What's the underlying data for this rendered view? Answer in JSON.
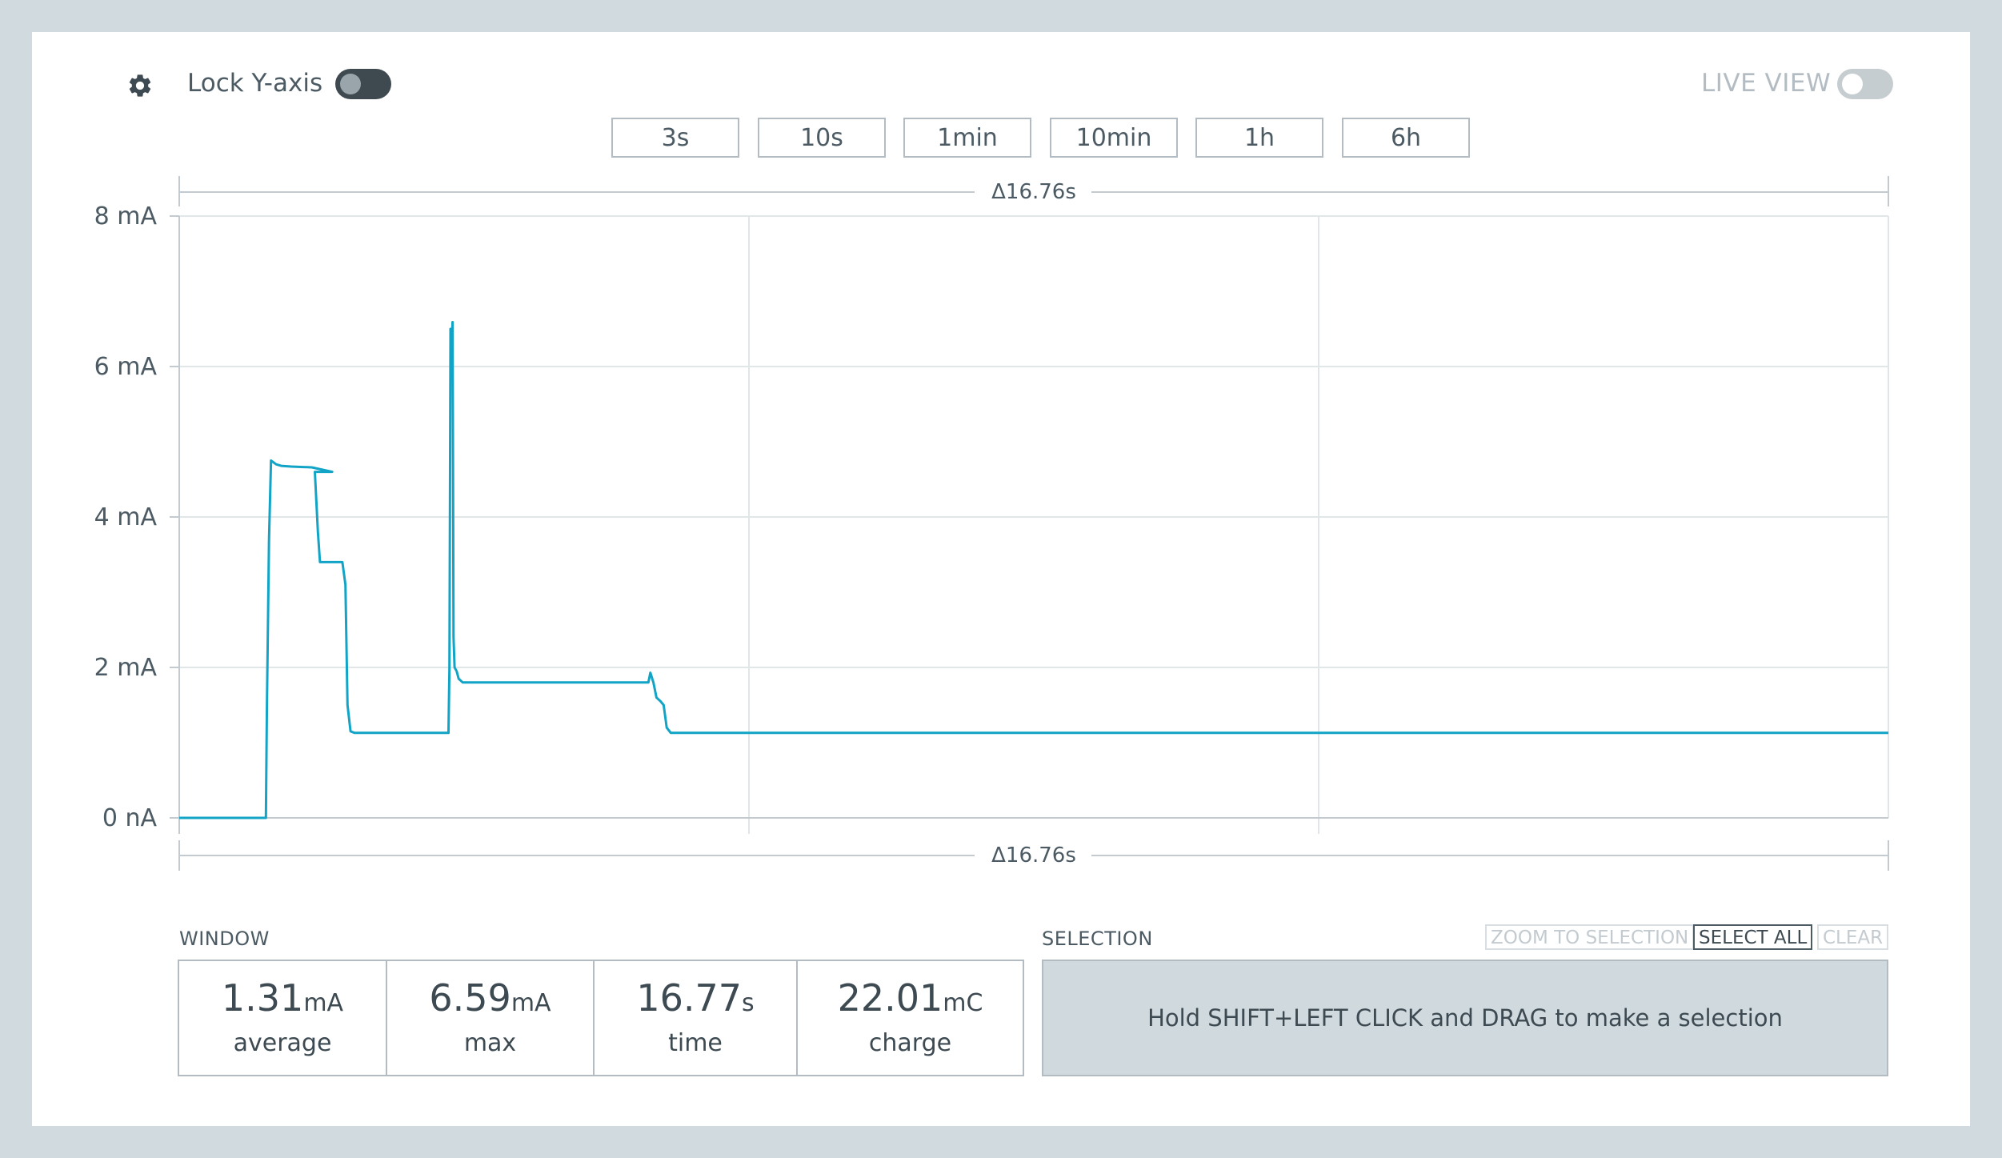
{
  "toolbar": {
    "lock_y_axis_label": "Lock Y-axis",
    "live_view_label": "LIVE VIEW",
    "icons": {
      "settings": "gear-icon"
    }
  },
  "time_ranges": [
    "3s",
    "10s",
    "1min",
    "10min",
    "1h",
    "6h"
  ],
  "chart_data": {
    "type": "line",
    "delta_top": "Δ16.76s",
    "delta_bottom": "Δ16.76s",
    "y_ticks": [
      "8 mA",
      "6 mA",
      "4 mA",
      "2 mA",
      "0 nA"
    ],
    "ylim": [
      0,
      8
    ],
    "xlim": [
      0,
      16.76
    ],
    "line_color": "#12a4c6",
    "grid": true,
    "series": [
      {
        "x": [
          0,
          0.85,
          0.86,
          0.88,
          0.9,
          0.95,
          1.0,
          1.1,
          1.3,
          1.5,
          1.33,
          1.36,
          1.38,
          1.42,
          1.45,
          1.6,
          1.63,
          1.65,
          1.68,
          1.72,
          1.8,
          2.2,
          2.64,
          2.65,
          2.66,
          2.67,
          2.68,
          2.69,
          2.7,
          2.72,
          2.74,
          2.78,
          2.8,
          2.85,
          3.0,
          4.6,
          4.62,
          4.65,
          4.68,
          4.72,
          4.75,
          4.78,
          4.82,
          4.88,
          6,
          8,
          10,
          12,
          14,
          16.76
        ],
        "y": [
          0,
          0,
          1.5,
          3.7,
          4.75,
          4.7,
          4.68,
          4.67,
          4.66,
          4.6,
          4.6,
          3.8,
          3.4,
          3.4,
          3.4,
          3.4,
          3.1,
          1.5,
          1.15,
          1.13,
          1.13,
          1.13,
          1.13,
          2.0,
          6.5,
          6.3,
          6.59,
          2.4,
          2.0,
          1.95,
          1.85,
          1.8,
          1.8,
          1.8,
          1.8,
          1.8,
          1.93,
          1.8,
          1.6,
          1.55,
          1.5,
          1.2,
          1.13,
          1.13,
          1.13,
          1.13,
          1.13,
          1.13,
          1.13,
          1.13
        ]
      }
    ]
  },
  "window": {
    "label": "WINDOW",
    "stats": [
      {
        "value": "1.31",
        "unit": "mA",
        "label": "average"
      },
      {
        "value": "6.59",
        "unit": "mA",
        "label": "max"
      },
      {
        "value": "16.77",
        "unit": "s",
        "label": "time"
      },
      {
        "value": "22.01",
        "unit": "mC",
        "label": "charge"
      }
    ]
  },
  "selection": {
    "label": "SELECTION",
    "zoom_label": "ZOOM TO SELECTION",
    "select_all_label": "SELECT ALL",
    "clear_label": "CLEAR",
    "hint": "Hold SHIFT+LEFT CLICK and DRAG to make a selection"
  }
}
